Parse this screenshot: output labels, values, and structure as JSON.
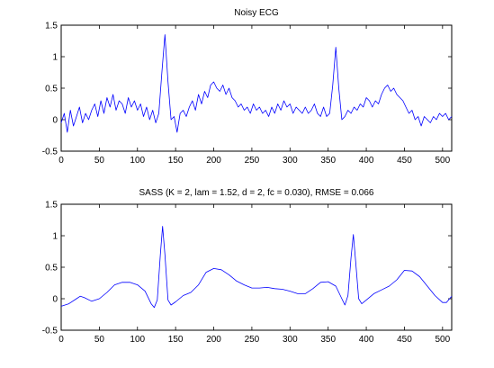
{
  "chart_data": [
    {
      "type": "line",
      "title": "Noisy ECG",
      "xlabel": "",
      "ylabel": "",
      "xlim": [
        0,
        512
      ],
      "ylim": [
        -0.5,
        1.5
      ],
      "xticks": [
        0,
        50,
        100,
        150,
        200,
        250,
        300,
        350,
        400,
        450,
        500
      ],
      "yticks": [
        -0.5,
        0,
        0.5,
        1,
        1.5
      ],
      "xtick_labels": [
        "0",
        "50",
        "100",
        "150",
        "200",
        "250",
        "300",
        "350",
        "400",
        "450",
        "500"
      ],
      "ytick_labels": [
        "-0.5",
        "0",
        "0.5",
        "1",
        "1.5"
      ],
      "grid": false,
      "color": "#0000ff",
      "series": [
        {
          "sample_interval": 4,
          "values": [
            -0.05,
            0.1,
            -0.2,
            0.15,
            -0.1,
            0.05,
            0.2,
            -0.05,
            0.1,
            0.0,
            0.15,
            0.25,
            0.05,
            0.3,
            0.1,
            0.35,
            0.2,
            0.4,
            0.15,
            0.3,
            0.25,
            0.1,
            0.35,
            0.2,
            0.3,
            0.15,
            0.25,
            0.05,
            0.2,
            0.0,
            0.15,
            -0.05,
            0.1,
            0.75,
            1.35,
            0.6,
            0.0,
            0.05,
            -0.2,
            0.1,
            0.15,
            0.05,
            0.2,
            0.3,
            0.15,
            0.4,
            0.25,
            0.45,
            0.35,
            0.55,
            0.6,
            0.5,
            0.45,
            0.55,
            0.4,
            0.5,
            0.35,
            0.3,
            0.2,
            0.25,
            0.15,
            0.2,
            0.1,
            0.25,
            0.15,
            0.2,
            0.1,
            0.15,
            0.05,
            0.2,
            0.1,
            0.25,
            0.15,
            0.3,
            0.2,
            0.25,
            0.1,
            0.2,
            0.15,
            0.1,
            0.2,
            0.1,
            0.15,
            0.25,
            0.1,
            0.05,
            0.2,
            0.05,
            0.1,
            0.55,
            1.15,
            0.5,
            0.0,
            0.05,
            0.15,
            0.1,
            0.2,
            0.15,
            0.25,
            0.2,
            0.35,
            0.3,
            0.2,
            0.3,
            0.25,
            0.4,
            0.5,
            0.55,
            0.45,
            0.5,
            0.4,
            0.35,
            0.3,
            0.2,
            0.1,
            0.15,
            0.0,
            0.05,
            -0.1,
            0.05,
            0.0,
            -0.05,
            0.05,
            0.0,
            0.1,
            0.05,
            0.1,
            0.0,
            0.05
          ]
        }
      ]
    },
    {
      "type": "line",
      "title": "SASS (K = 2, lam = 1.52, d = 2, fc = 0.030), RMSE = 0.066",
      "xlabel": "",
      "ylabel": "",
      "xlim": [
        0,
        512
      ],
      "ylim": [
        -0.5,
        1.5
      ],
      "xticks": [
        0,
        50,
        100,
        150,
        200,
        250,
        300,
        350,
        400,
        450,
        500
      ],
      "yticks": [
        -0.5,
        0,
        0.5,
        1,
        1.5
      ],
      "xtick_labels": [
        "0",
        "50",
        "100",
        "150",
        "200",
        "250",
        "300",
        "350",
        "400",
        "450",
        "500"
      ],
      "ytick_labels": [
        "-0.5",
        "0",
        "0.5",
        "1",
        "1.5"
      ],
      "grid": false,
      "color": "#0000ff",
      "series": [
        {
          "x": [
            0,
            10,
            20,
            25,
            30,
            40,
            50,
            60,
            70,
            80,
            90,
            100,
            110,
            118,
            122,
            126,
            130,
            133,
            136,
            140,
            144,
            150,
            160,
            170,
            180,
            190,
            200,
            210,
            220,
            230,
            240,
            250,
            260,
            270,
            280,
            290,
            300,
            310,
            320,
            330,
            340,
            350,
            360,
            368,
            372,
            376,
            380,
            383,
            386,
            390,
            394,
            400,
            410,
            420,
            430,
            440,
            450,
            460,
            470,
            480,
            490,
            500,
            505,
            512
          ],
          "y": [
            -0.12,
            -0.08,
            0.0,
            0.04,
            0.02,
            -0.04,
            0.0,
            0.1,
            0.22,
            0.26,
            0.26,
            0.22,
            0.12,
            -0.08,
            -0.14,
            -0.02,
            0.7,
            1.15,
            0.7,
            -0.02,
            -0.1,
            -0.05,
            0.05,
            0.1,
            0.22,
            0.42,
            0.48,
            0.46,
            0.38,
            0.28,
            0.22,
            0.17,
            0.17,
            0.18,
            0.16,
            0.15,
            0.12,
            0.08,
            0.08,
            0.16,
            0.26,
            0.27,
            0.2,
            0.0,
            -0.1,
            0.05,
            0.65,
            1.02,
            0.6,
            0.0,
            -0.08,
            -0.02,
            0.08,
            0.14,
            0.2,
            0.3,
            0.45,
            0.44,
            0.35,
            0.2,
            0.05,
            -0.06,
            -0.06,
            0.04
          ]
        }
      ]
    }
  ]
}
